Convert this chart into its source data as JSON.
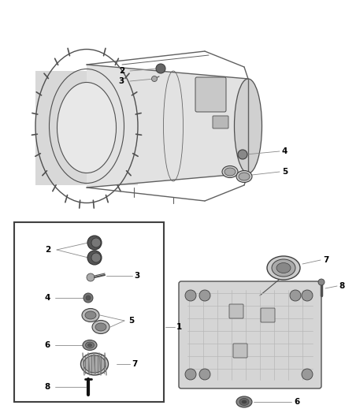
{
  "bg_color": "#ffffff",
  "lc": "#606060",
  "tc": "#000000",
  "fig_w": 4.38,
  "fig_h": 5.33,
  "dpi": 100
}
